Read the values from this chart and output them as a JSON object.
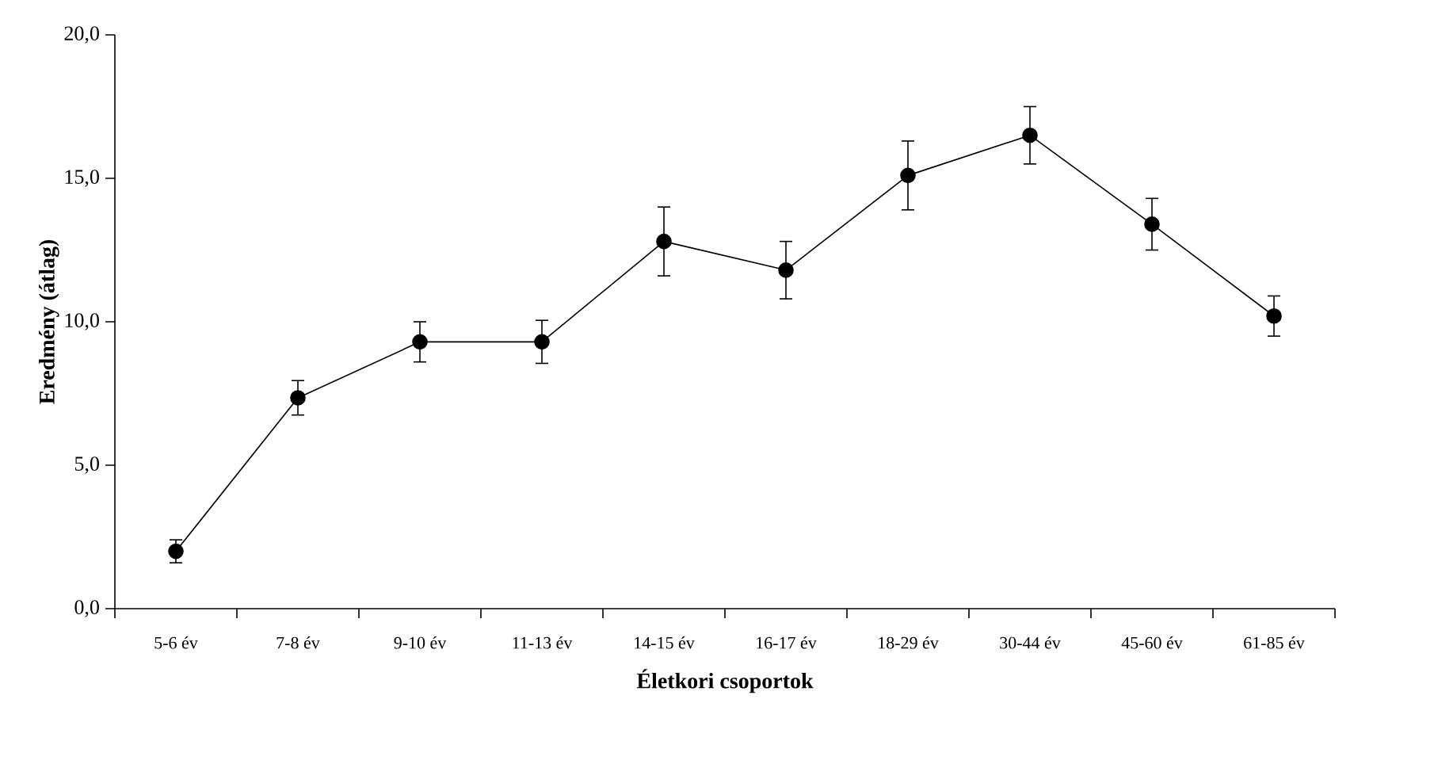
{
  "chart_data": {
    "type": "line",
    "xlabel": "Életkori csoportok",
    "ylabel": "Eredmény (átlag)",
    "categories": [
      "5-6 év",
      "7-8 év",
      "9-10 év",
      "11-13 év",
      "14-15 év",
      "16-17 év",
      "18-29 év",
      "30-44 év",
      "45-60 év",
      "61-85 év"
    ],
    "values": [
      2.0,
      7.35,
      9.3,
      9.3,
      12.8,
      11.8,
      15.1,
      16.5,
      13.4,
      10.2
    ],
    "errors": [
      0.4,
      0.6,
      0.7,
      0.75,
      1.2,
      1.0,
      1.2,
      1.0,
      0.9,
      0.7
    ],
    "color": "#000000",
    "marker": "circle",
    "line_style": "solid",
    "grid": false,
    "ylim": [
      0,
      20
    ],
    "yticks": [
      {
        "value": 0,
        "label": "0,0"
      },
      {
        "value": 5,
        "label": "5,0"
      },
      {
        "value": 10,
        "label": "10,0"
      },
      {
        "value": 15,
        "label": "15,0"
      },
      {
        "value": 20,
        "label": "20,0"
      }
    ]
  }
}
